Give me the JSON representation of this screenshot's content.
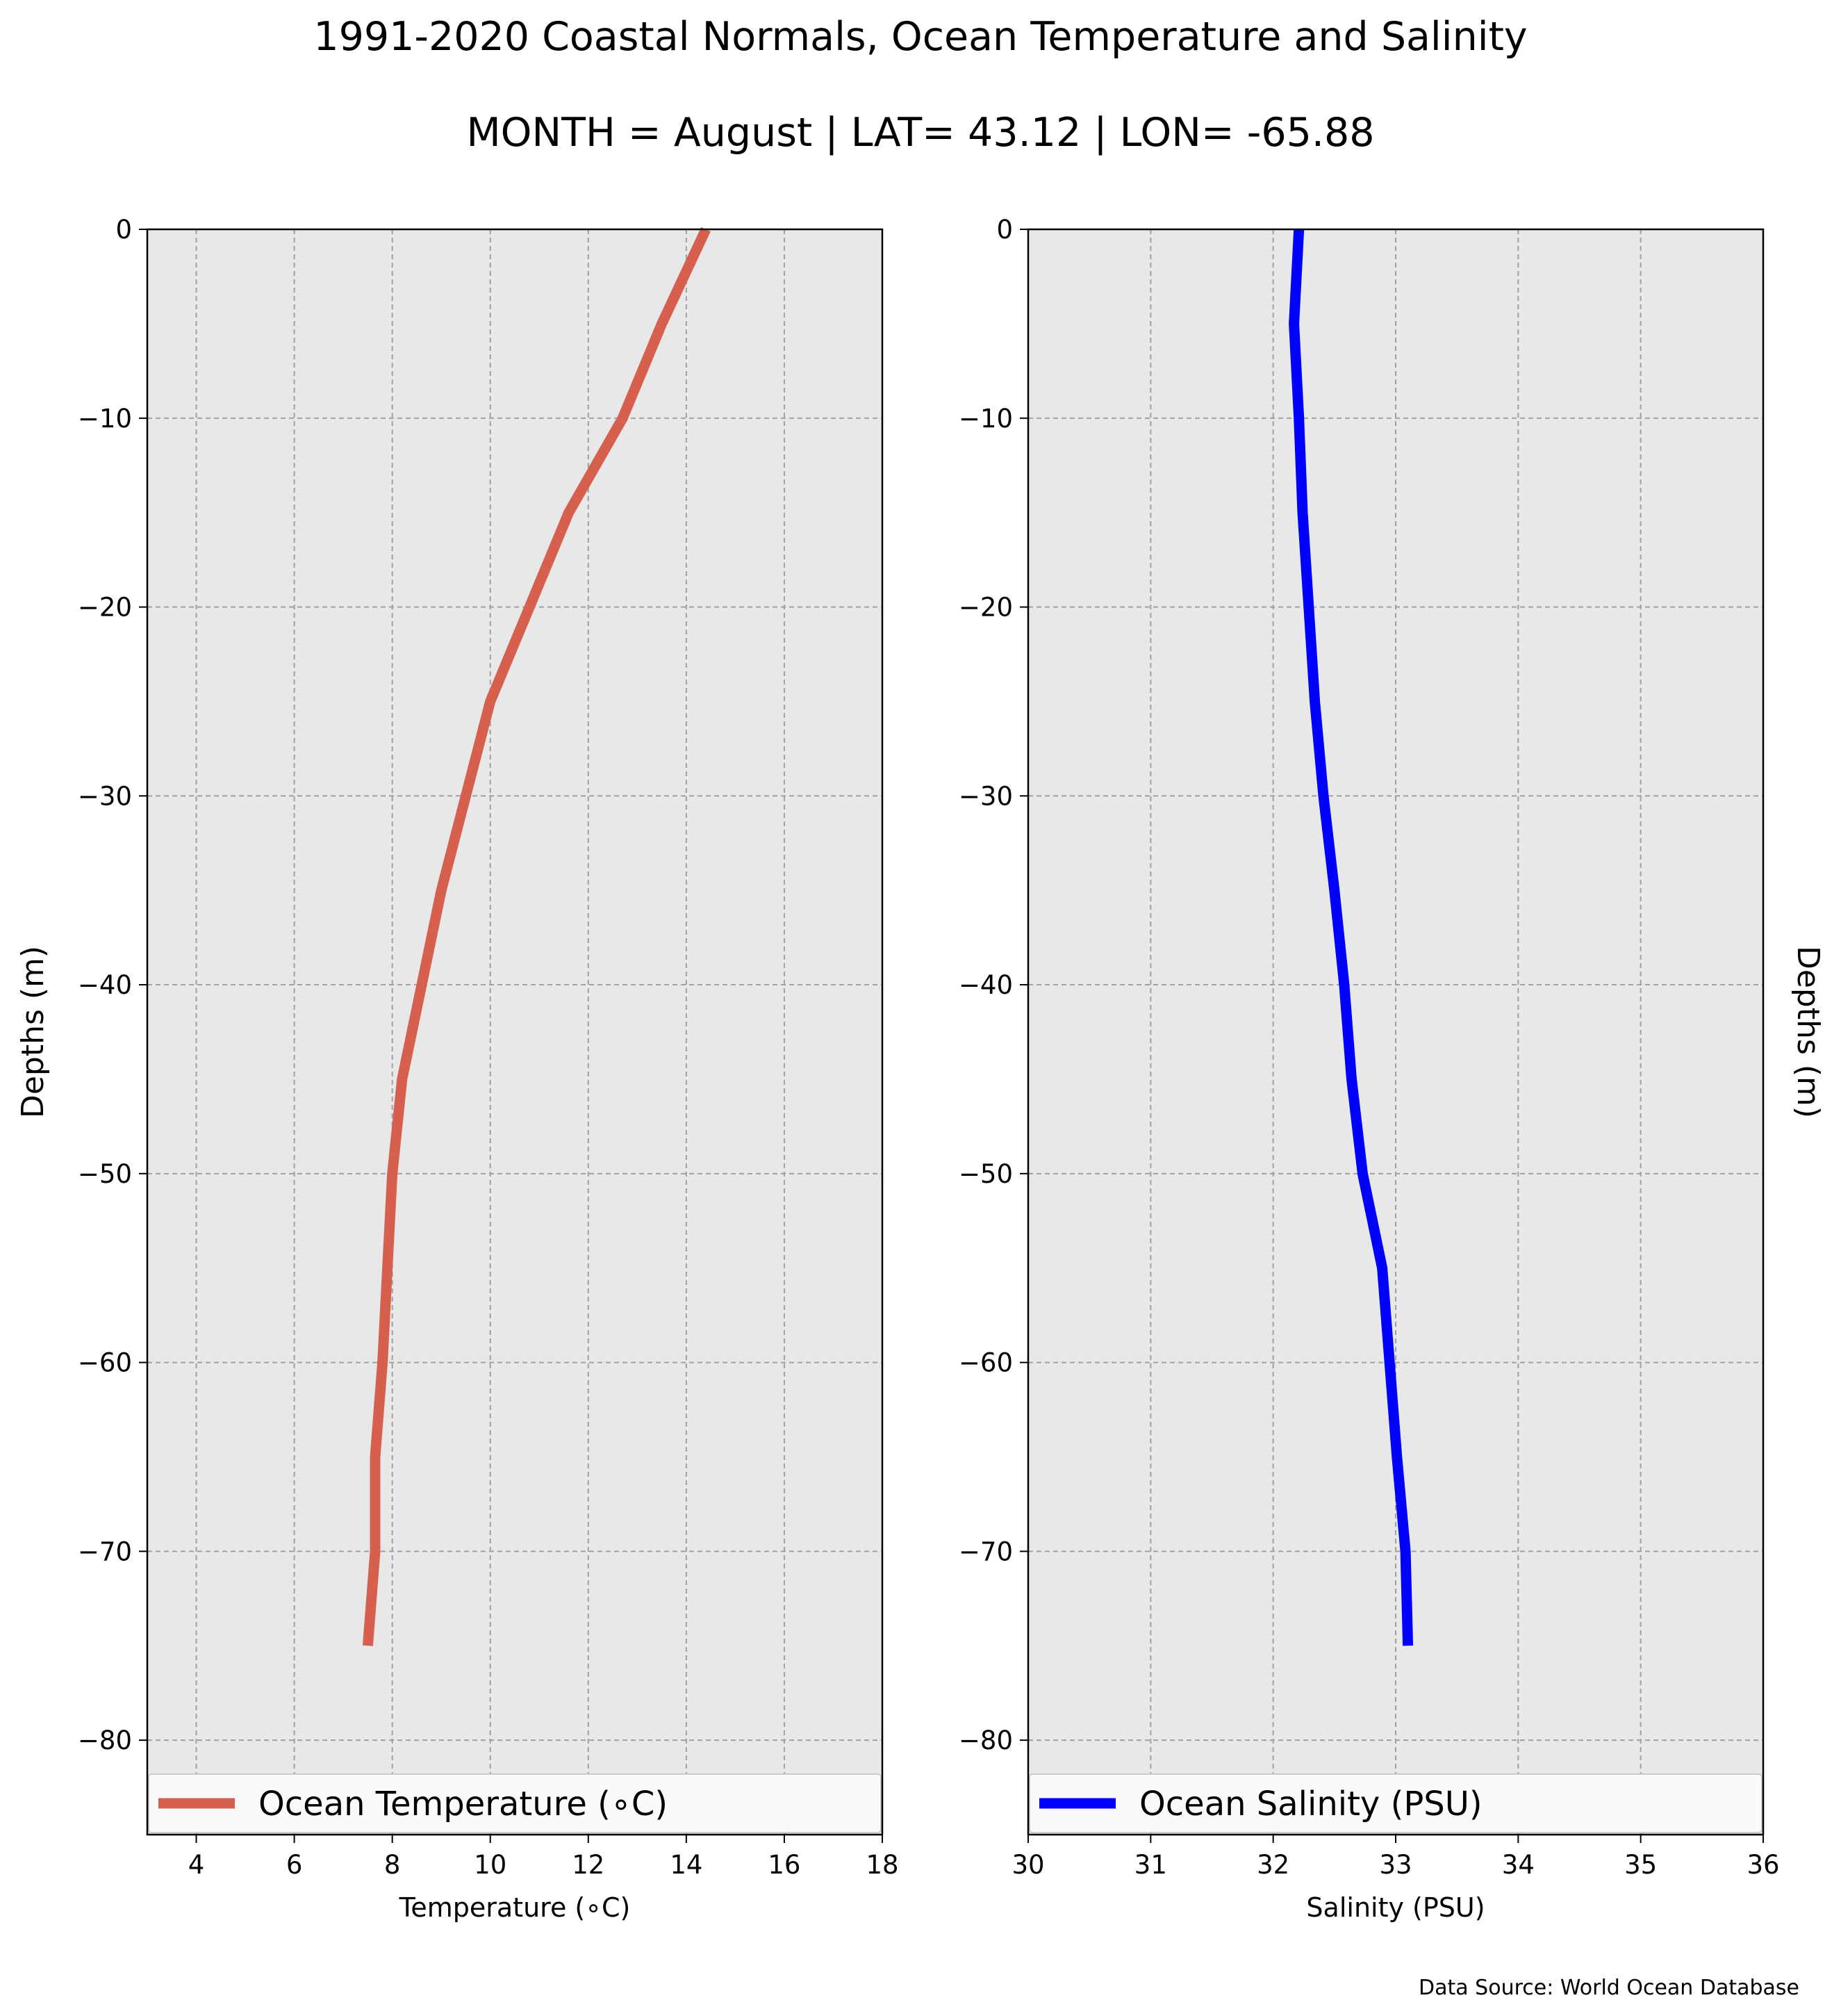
{
  "figure": {
    "title": "1991-2020 Coastal Normals, Ocean Temperature and Salinity",
    "subtitle": "MONTH = August | LAT= 43.12 | LON= -65.88",
    "footnote": "Data Source: World Ocean Database",
    "background_color": "#ffffff",
    "axes_face_color": "#e8e8e8",
    "grid_color": "#a0a0a0"
  },
  "chart_data": [
    {
      "type": "line",
      "xlabel": "Temperature (∘C)",
      "ylabel": "Depths (m)",
      "xlim": [
        3,
        18
      ],
      "ylim": [
        -85,
        0
      ],
      "xticks": [
        4,
        6,
        8,
        10,
        12,
        14,
        16,
        18
      ],
      "xtick_labels": [
        "4",
        "6",
        "8",
        "10",
        "12",
        "14",
        "16",
        "18"
      ],
      "yticks": [
        0,
        -10,
        -20,
        -30,
        -40,
        -50,
        -60,
        -70,
        -80
      ],
      "ytick_labels": [
        "0",
        "−10",
        "−20",
        "−30",
        "−40",
        "−50",
        "−60",
        "−70",
        "−80"
      ],
      "grid": true,
      "legend_position": "bottom",
      "series": [
        {
          "name": "Ocean Temperature (∘C)",
          "color": "#d6604d",
          "x": [
            14.4,
            13.5,
            12.7,
            11.6,
            10.8,
            10.0,
            9.5,
            9.0,
            8.6,
            8.2,
            8.0,
            7.9,
            7.8,
            7.65,
            7.65,
            7.5
          ],
          "y": [
            0,
            -5,
            -10,
            -15,
            -20,
            -25,
            -30,
            -35,
            -40,
            -45,
            -50,
            -55,
            -60,
            -65,
            -70,
            -75
          ]
        }
      ]
    },
    {
      "type": "line",
      "xlabel": "Salinity (PSU)",
      "ylabel": "Depths (m)",
      "ylabel_position": "right",
      "xlim": [
        30,
        36
      ],
      "ylim": [
        -85,
        0
      ],
      "xticks": [
        30,
        31,
        32,
        33,
        34,
        35,
        36
      ],
      "xtick_labels": [
        "30",
        "31",
        "32",
        "33",
        "34",
        "35",
        "36"
      ],
      "yticks": [
        0,
        -10,
        -20,
        -30,
        -40,
        -50,
        -60,
        -70,
        -80
      ],
      "ytick_labels": [
        "0",
        "−10",
        "−20",
        "−30",
        "−40",
        "−50",
        "−60",
        "−70",
        "−80"
      ],
      "grid": true,
      "legend_position": "bottom",
      "series": [
        {
          "name": "Ocean Salinity (PSU)",
          "color": "#0000ff",
          "x": [
            32.21,
            32.17,
            32.21,
            32.24,
            32.29,
            32.34,
            32.41,
            32.5,
            32.58,
            32.64,
            32.73,
            32.89,
            32.95,
            33.01,
            33.08,
            33.1
          ],
          "y": [
            0,
            -5,
            -10,
            -15,
            -20,
            -25,
            -30,
            -35,
            -40,
            -45,
            -50,
            -55,
            -60,
            -65,
            -70,
            -75
          ]
        }
      ]
    }
  ]
}
